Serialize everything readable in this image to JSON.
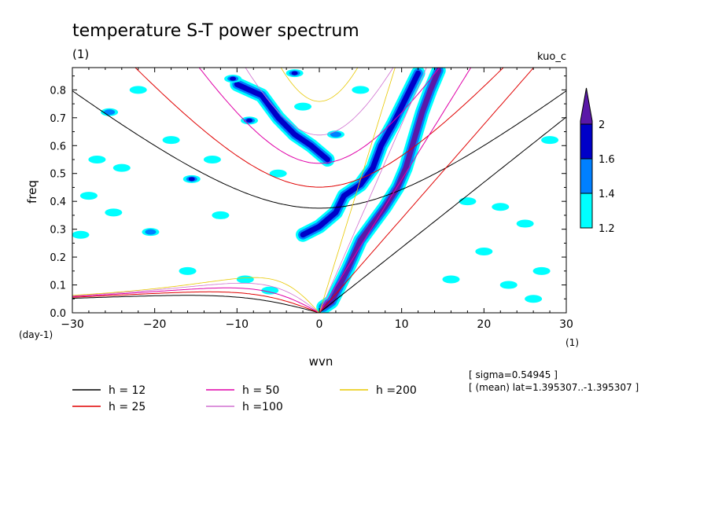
{
  "chart_data": {
    "type": "contour",
    "title": "temperature S-T power spectrum",
    "subtitle": "(1)",
    "label_right": "kuo_c",
    "xlabel": "wvn",
    "x_unit": "(1)",
    "ylabel": "freq",
    "y_unit": "(day-1)",
    "xlim": [
      -30,
      30
    ],
    "ylim": [
      0,
      0.88
    ],
    "x_ticks": [
      "-30",
      "-20",
      "-10",
      "0",
      "10",
      "20",
      "30"
    ],
    "y_ticks": [
      "0.0",
      "0.1",
      "0.2",
      "0.3",
      "0.4",
      "0.5",
      "0.6",
      "0.7",
      "0.8"
    ],
    "colorbar": {
      "levels": [
        1.2,
        1.4,
        1.6,
        2
      ],
      "labels": [
        "1.2",
        "1.4",
        "1.6",
        "2"
      ],
      "colors": [
        "#00ffff",
        "#0080ff",
        "#0000c8",
        "#5a18a8"
      ]
    },
    "dispersion_curves": [
      {
        "name": "h = 12",
        "h": 12,
        "color": "#000000"
      },
      {
        "name": "h = 25",
        "h": 25,
        "color": "#e00000"
      },
      {
        "name": "h = 50",
        "h": 50,
        "color": "#e000a8"
      },
      {
        "name": "h =100",
        "h": 100,
        "color": "#d070d0"
      },
      {
        "name": "h =200",
        "h": 200,
        "color": "#e8c800"
      }
    ],
    "annotations": [
      "[ sigma=0.54945 ]",
      "[ (mean) lat=1.395307..-1.395307 ]"
    ],
    "spectral_ridges": [
      {
        "level": 2,
        "points": [
          [
            0.5,
            0.02
          ],
          [
            1.5,
            0.04
          ],
          [
            2.5,
            0.1
          ],
          [
            3.5,
            0.16
          ],
          [
            5,
            0.26
          ],
          [
            6.5,
            0.32
          ],
          [
            8,
            0.38
          ],
          [
            9.5,
            0.45
          ],
          [
            10.5,
            0.52
          ],
          [
            11.5,
            0.62
          ],
          [
            12.5,
            0.72
          ],
          [
            13.5,
            0.8
          ],
          [
            14.5,
            0.87
          ]
        ]
      },
      {
        "level": 1.6,
        "points": [
          [
            -2,
            0.28
          ],
          [
            0,
            0.31
          ],
          [
            2,
            0.36
          ],
          [
            3,
            0.42
          ],
          [
            5,
            0.46
          ],
          [
            6.5,
            0.52
          ],
          [
            7.5,
            0.6
          ],
          [
            9,
            0.68
          ],
          [
            10,
            0.74
          ],
          [
            11,
            0.8
          ],
          [
            12,
            0.86
          ]
        ]
      },
      {
        "level": 1.6,
        "points": [
          [
            -10,
            0.82
          ],
          [
            -7,
            0.78
          ],
          [
            -5,
            0.7
          ],
          [
            -3,
            0.64
          ],
          [
            -1,
            0.6
          ],
          [
            1,
            0.55
          ]
        ]
      }
    ],
    "spectral_spots": [
      {
        "level": 1.6,
        "x": -10.5,
        "y": 0.84
      },
      {
        "level": 1.6,
        "x": -15.5,
        "y": 0.48
      },
      {
        "level": 1.6,
        "x": -8.5,
        "y": 0.69
      },
      {
        "level": 1.6,
        "x": -3,
        "y": 0.86
      },
      {
        "level": 1.4,
        "x": -25.5,
        "y": 0.72
      },
      {
        "level": 1.4,
        "x": -20.5,
        "y": 0.29
      },
      {
        "level": 1.4,
        "x": 2,
        "y": 0.64
      },
      {
        "level": 1.2,
        "x": -27,
        "y": 0.55
      },
      {
        "level": 1.2,
        "x": -24,
        "y": 0.52
      },
      {
        "level": 1.2,
        "x": -18,
        "y": 0.62
      },
      {
        "level": 1.2,
        "x": -13,
        "y": 0.55
      },
      {
        "level": 1.2,
        "x": -28,
        "y": 0.42
      },
      {
        "level": 1.2,
        "x": -25,
        "y": 0.36
      },
      {
        "level": 1.2,
        "x": -12,
        "y": 0.35
      },
      {
        "level": 1.2,
        "x": -9,
        "y": 0.12
      },
      {
        "level": 1.2,
        "x": -6,
        "y": 0.08
      },
      {
        "level": 1.2,
        "x": -29,
        "y": 0.28
      },
      {
        "level": 1.2,
        "x": -22,
        "y": 0.8
      },
      {
        "level": 1.2,
        "x": -5,
        "y": 0.5
      },
      {
        "level": 1.2,
        "x": 5,
        "y": 0.8
      },
      {
        "level": 1.2,
        "x": 18,
        "y": 0.4
      },
      {
        "level": 1.2,
        "x": 22,
        "y": 0.38
      },
      {
        "level": 1.2,
        "x": 25,
        "y": 0.32
      },
      {
        "level": 1.2,
        "x": 28,
        "y": 0.62
      },
      {
        "level": 1.2,
        "x": 27,
        "y": 0.15
      },
      {
        "level": 1.2,
        "x": 23,
        "y": 0.1
      },
      {
        "level": 1.2,
        "x": 26,
        "y": 0.05
      },
      {
        "level": 1.2,
        "x": 16,
        "y": 0.12
      },
      {
        "level": 1.2,
        "x": 20,
        "y": 0.22
      },
      {
        "level": 1.2,
        "x": -16,
        "y": 0.15
      },
      {
        "level": 1.2,
        "x": -2,
        "y": 0.74
      }
    ]
  }
}
